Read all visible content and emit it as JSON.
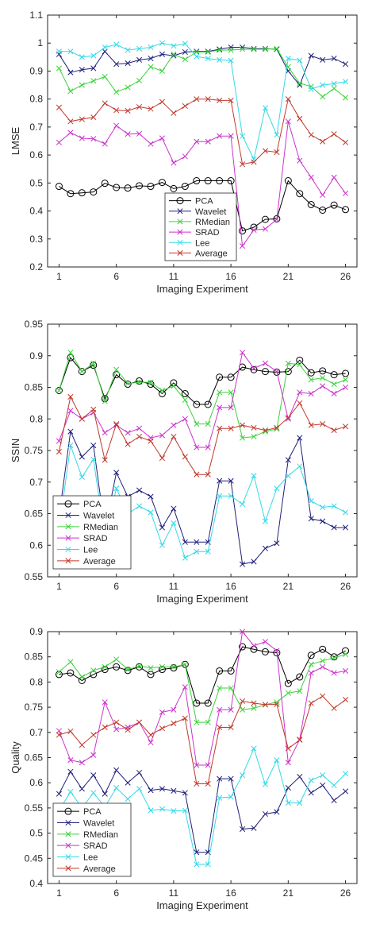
{
  "chart_data": [
    {
      "type": "line",
      "xlabel": "Imaging Experiment",
      "ylabel": "LMSE",
      "ylim": [
        0.2,
        1.1
      ],
      "yticks": [
        "0.2",
        "0.3",
        "0.4",
        "0.5",
        "0.6",
        "0.7",
        "0.8",
        "0.9",
        "1",
        "1.1"
      ],
      "xticks": [
        1,
        6,
        11,
        16,
        21,
        26
      ],
      "xlim": [
        0,
        27
      ],
      "legend": "bottom-center",
      "x": [
        1,
        2,
        3,
        4,
        5,
        6,
        7,
        8,
        9,
        10,
        11,
        12,
        13,
        14,
        15,
        16,
        17,
        18,
        19,
        20,
        21,
        22,
        23,
        24,
        25,
        26
      ],
      "series": [
        {
          "name": "PCA",
          "color": "#000000",
          "marker": "circle",
          "values": [
            0.488,
            0.462,
            0.465,
            0.468,
            0.499,
            0.484,
            0.482,
            0.49,
            0.488,
            0.502,
            0.48,
            0.488,
            0.508,
            0.508,
            0.508,
            0.508,
            0.329,
            0.342,
            0.37,
            0.372,
            0.508,
            0.462,
            0.423,
            0.403,
            0.421,
            0.405
          ]
        },
        {
          "name": "Wavelet",
          "color": "#1f1f7a",
          "marker": "x",
          "values": [
            0.96,
            0.895,
            0.905,
            0.91,
            0.97,
            0.925,
            0.928,
            0.94,
            0.945,
            0.96,
            0.955,
            0.968,
            0.97,
            0.97,
            0.978,
            0.985,
            0.985,
            0.98,
            0.98,
            0.978,
            0.9,
            0.85,
            0.955,
            0.94,
            0.945,
            0.925
          ]
        },
        {
          "name": "RMedian",
          "color": "#3cd23c",
          "marker": "x",
          "values": [
            0.91,
            0.828,
            0.85,
            0.865,
            0.88,
            0.825,
            0.842,
            0.866,
            0.915,
            0.9,
            0.96,
            0.942,
            0.968,
            0.968,
            0.975,
            0.975,
            0.978,
            0.978,
            0.978,
            0.98,
            0.915,
            0.856,
            0.845,
            0.808,
            0.838,
            0.805
          ]
        },
        {
          "name": "SRAD",
          "color": "#cc33cc",
          "marker": "x",
          "values": [
            0.645,
            0.68,
            0.66,
            0.658,
            0.64,
            0.705,
            0.675,
            0.676,
            0.64,
            0.66,
            0.572,
            0.595,
            0.648,
            0.648,
            0.668,
            0.668,
            0.275,
            0.332,
            0.336,
            0.37,
            0.72,
            0.58,
            0.52,
            0.457,
            0.52,
            0.463
          ]
        },
        {
          "name": "Lee",
          "color": "#33d9e6",
          "marker": "x",
          "values": [
            0.97,
            0.97,
            0.95,
            0.955,
            0.985,
            0.995,
            0.975,
            0.98,
            0.985,
            1.0,
            0.99,
            0.998,
            0.952,
            0.945,
            0.94,
            0.938,
            0.668,
            0.585,
            0.768,
            0.672,
            0.945,
            0.938,
            0.835,
            0.85,
            0.855,
            0.862
          ]
        },
        {
          "name": "Average",
          "color": "#c0392b",
          "marker": "x",
          "values": [
            0.77,
            0.72,
            0.728,
            0.735,
            0.785,
            0.76,
            0.758,
            0.772,
            0.765,
            0.79,
            0.75,
            0.775,
            0.8,
            0.8,
            0.795,
            0.795,
            0.567,
            0.575,
            0.615,
            0.61,
            0.8,
            0.73,
            0.672,
            0.648,
            0.675,
            0.645
          ]
        }
      ]
    },
    {
      "type": "line",
      "xlabel": "Imaging Experiment",
      "ylabel": "SSIN",
      "ylim": [
        0.55,
        0.95
      ],
      "yticks": [
        "0.55",
        "0.6",
        "0.65",
        "0.7",
        "0.75",
        "0.8",
        "0.85",
        "0.9",
        "0.95"
      ],
      "xticks": [
        1,
        6,
        11,
        16,
        21,
        26
      ],
      "xlim": [
        0,
        27
      ],
      "legend": "bottom-left",
      "x": [
        1,
        2,
        3,
        4,
        5,
        6,
        7,
        8,
        9,
        10,
        11,
        12,
        13,
        14,
        15,
        16,
        17,
        18,
        19,
        20,
        21,
        22,
        23,
        24,
        25,
        26
      ],
      "series": [
        {
          "name": "PCA",
          "color": "#000000",
          "marker": "circle",
          "values": [
            0.845,
            0.897,
            0.875,
            0.885,
            0.832,
            0.87,
            0.855,
            0.86,
            0.855,
            0.84,
            0.857,
            0.84,
            0.823,
            0.823,
            0.866,
            0.866,
            0.882,
            0.878,
            0.875,
            0.874,
            0.875,
            0.893,
            0.873,
            0.876,
            0.87,
            0.872
          ]
        },
        {
          "name": "Wavelet",
          "color": "#1f1f7a",
          "marker": "x",
          "values": [
            0.645,
            0.78,
            0.74,
            0.758,
            0.625,
            0.715,
            0.677,
            0.687,
            0.677,
            0.628,
            0.658,
            0.605,
            0.605,
            0.605,
            0.702,
            0.702,
            0.57,
            0.574,
            0.595,
            0.603,
            0.735,
            0.77,
            0.642,
            0.638,
            0.628,
            0.628
          ]
        },
        {
          "name": "RMedian",
          "color": "#3cd23c",
          "marker": "x",
          "values": [
            0.845,
            0.905,
            0.875,
            0.888,
            0.828,
            0.878,
            0.856,
            0.858,
            0.858,
            0.845,
            0.852,
            0.83,
            0.792,
            0.792,
            0.842,
            0.842,
            0.77,
            0.772,
            0.78,
            0.784,
            0.888,
            0.886,
            0.862,
            0.865,
            0.855,
            0.862
          ]
        },
        {
          "name": "SRAD",
          "color": "#cc33cc",
          "marker": "x",
          "values": [
            0.765,
            0.813,
            0.8,
            0.81,
            0.778,
            0.79,
            0.778,
            0.785,
            0.77,
            0.774,
            0.79,
            0.8,
            0.755,
            0.755,
            0.818,
            0.818,
            0.905,
            0.88,
            0.888,
            0.875,
            0.8,
            0.842,
            0.84,
            0.852,
            0.84,
            0.85
          ]
        },
        {
          "name": "Lee",
          "color": "#33d9e6",
          "marker": "x",
          "values": [
            0.625,
            0.758,
            0.708,
            0.736,
            0.612,
            0.69,
            0.65,
            0.662,
            0.652,
            0.6,
            0.635,
            0.58,
            0.59,
            0.59,
            0.678,
            0.678,
            0.665,
            0.71,
            0.638,
            0.69,
            0.71,
            0.725,
            0.67,
            0.66,
            0.662,
            0.652
          ]
        },
        {
          "name": "Average",
          "color": "#c0392b",
          "marker": "x",
          "values": [
            0.748,
            0.835,
            0.8,
            0.815,
            0.735,
            0.792,
            0.76,
            0.772,
            0.765,
            0.738,
            0.772,
            0.74,
            0.712,
            0.712,
            0.785,
            0.785,
            0.79,
            0.786,
            0.782,
            0.786,
            0.802,
            0.825,
            0.79,
            0.792,
            0.782,
            0.788
          ]
        }
      ]
    },
    {
      "type": "line",
      "xlabel": "Imaging Experiment",
      "ylabel": "Quality",
      "ylim": [
        0.4,
        0.9
      ],
      "yticks": [
        "0.4",
        "0.45",
        "0.5",
        "0.55",
        "0.6",
        "0.65",
        "0.7",
        "0.75",
        "0.8",
        "0.85",
        "0.9"
      ],
      "xticks": [
        1,
        6,
        11,
        16,
        21,
        26
      ],
      "xlim": [
        0,
        27
      ],
      "legend": "bottom-left",
      "x": [
        1,
        2,
        3,
        4,
        5,
        6,
        7,
        8,
        9,
        10,
        11,
        12,
        13,
        14,
        15,
        16,
        17,
        18,
        19,
        20,
        21,
        22,
        23,
        24,
        25,
        26
      ],
      "series": [
        {
          "name": "PCA",
          "color": "#000000",
          "marker": "circle",
          "values": [
            0.815,
            0.818,
            0.803,
            0.815,
            0.825,
            0.83,
            0.823,
            0.83,
            0.815,
            0.825,
            0.828,
            0.835,
            0.758,
            0.758,
            0.822,
            0.822,
            0.87,
            0.865,
            0.86,
            0.858,
            0.797,
            0.81,
            0.853,
            0.865,
            0.85,
            0.862
          ]
        },
        {
          "name": "Wavelet",
          "color": "#1f1f7a",
          "marker": "x",
          "values": [
            0.578,
            0.622,
            0.588,
            0.615,
            0.578,
            0.625,
            0.6,
            0.62,
            0.585,
            0.588,
            0.584,
            0.58,
            0.462,
            0.462,
            0.608,
            0.608,
            0.508,
            0.51,
            0.538,
            0.542,
            0.59,
            0.612,
            0.58,
            0.595,
            0.565,
            0.583
          ]
        },
        {
          "name": "RMedian",
          "color": "#3cd23c",
          "marker": "x",
          "values": [
            0.82,
            0.84,
            0.81,
            0.823,
            0.83,
            0.845,
            0.825,
            0.832,
            0.828,
            0.83,
            0.83,
            0.835,
            0.72,
            0.72,
            0.788,
            0.788,
            0.745,
            0.748,
            0.755,
            0.76,
            0.778,
            0.782,
            0.835,
            0.842,
            0.848,
            0.855
          ]
        },
        {
          "name": "SRAD",
          "color": "#cc33cc",
          "marker": "x",
          "values": [
            0.703,
            0.645,
            0.64,
            0.655,
            0.76,
            0.706,
            0.71,
            0.72,
            0.68,
            0.74,
            0.745,
            0.79,
            0.635,
            0.635,
            0.745,
            0.745,
            0.9,
            0.872,
            0.88,
            0.862,
            0.64,
            0.686,
            0.818,
            0.83,
            0.818,
            0.822
          ]
        },
        {
          "name": "Lee",
          "color": "#33d9e6",
          "marker": "x",
          "values": [
            0.545,
            0.582,
            0.55,
            0.58,
            0.552,
            0.59,
            0.568,
            0.588,
            0.545,
            0.548,
            0.544,
            0.545,
            0.438,
            0.438,
            0.57,
            0.572,
            0.615,
            0.668,
            0.597,
            0.645,
            0.56,
            0.56,
            0.605,
            0.615,
            0.595,
            0.618
          ]
        },
        {
          "name": "Average",
          "color": "#c0392b",
          "marker": "x",
          "values": [
            0.695,
            0.702,
            0.675,
            0.695,
            0.71,
            0.72,
            0.705,
            0.72,
            0.695,
            0.708,
            0.718,
            0.728,
            0.598,
            0.598,
            0.71,
            0.71,
            0.762,
            0.758,
            0.755,
            0.756,
            0.668,
            0.685,
            0.758,
            0.772,
            0.748,
            0.765
          ]
        }
      ]
    }
  ]
}
